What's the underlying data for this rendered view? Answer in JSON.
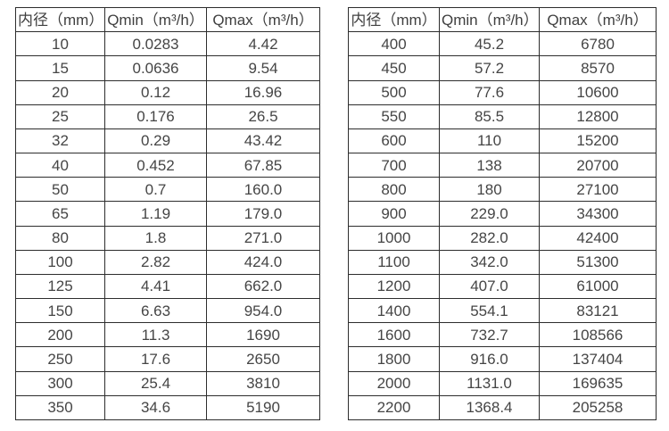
{
  "page": {
    "background": "#ffffff",
    "border_color": "#2d2d2d",
    "text_color": "#454545",
    "description": "Flow range specification tables by inner diameter"
  },
  "tables": [
    {
      "name": "flow-range-table-small-diameters",
      "headers": [
        "内径（mm）",
        "Qmin（m³/h）",
        "Qmax（m³/h）"
      ],
      "rows": [
        [
          "10",
          "0.0283",
          "4.42"
        ],
        [
          "15",
          "0.0636",
          "9.54"
        ],
        [
          "20",
          "0.12",
          "16.96"
        ],
        [
          "25",
          "0.176",
          "26.5"
        ],
        [
          "32",
          "0.29",
          "43.42"
        ],
        [
          "40",
          "0.452",
          "67.85"
        ],
        [
          "50",
          "0.7",
          "160.0"
        ],
        [
          "65",
          "1.19",
          "179.0"
        ],
        [
          "80",
          "1.8",
          "271.0"
        ],
        [
          "100",
          "2.82",
          "424.0"
        ],
        [
          "125",
          "4.41",
          "662.0"
        ],
        [
          "150",
          "6.63",
          "954.0"
        ],
        [
          "200",
          "11.3",
          "1690"
        ],
        [
          "250",
          "17.6",
          "2650"
        ],
        [
          "300",
          "25.4",
          "3810"
        ],
        [
          "350",
          "34.6",
          "5190"
        ]
      ]
    },
    {
      "name": "flow-range-table-large-diameters",
      "headers": [
        "内径（mm）",
        "Qmin（m³/h）",
        "Qmax（m³/h）"
      ],
      "rows": [
        [
          "400",
          "45.2",
          "6780"
        ],
        [
          "450",
          "57.2",
          "8570"
        ],
        [
          "500",
          "77.6",
          "10600"
        ],
        [
          "550",
          "85.5",
          "12800"
        ],
        [
          "600",
          "110",
          "15200"
        ],
        [
          "700",
          "138",
          "20700"
        ],
        [
          "800",
          "180",
          "27100"
        ],
        [
          "900",
          "229.0",
          "34300"
        ],
        [
          "1000",
          "282.0",
          "42400"
        ],
        [
          "1100",
          "342.0",
          "51300"
        ],
        [
          "1200",
          "407.0",
          "61000"
        ],
        [
          "1400",
          "554.1",
          "83121"
        ],
        [
          "1600",
          "732.7",
          "108566"
        ],
        [
          "1800",
          "916.0",
          "137404"
        ],
        [
          "2000",
          "1131.0",
          "169635"
        ],
        [
          "2200",
          "1368.4",
          "205258"
        ]
      ]
    }
  ]
}
